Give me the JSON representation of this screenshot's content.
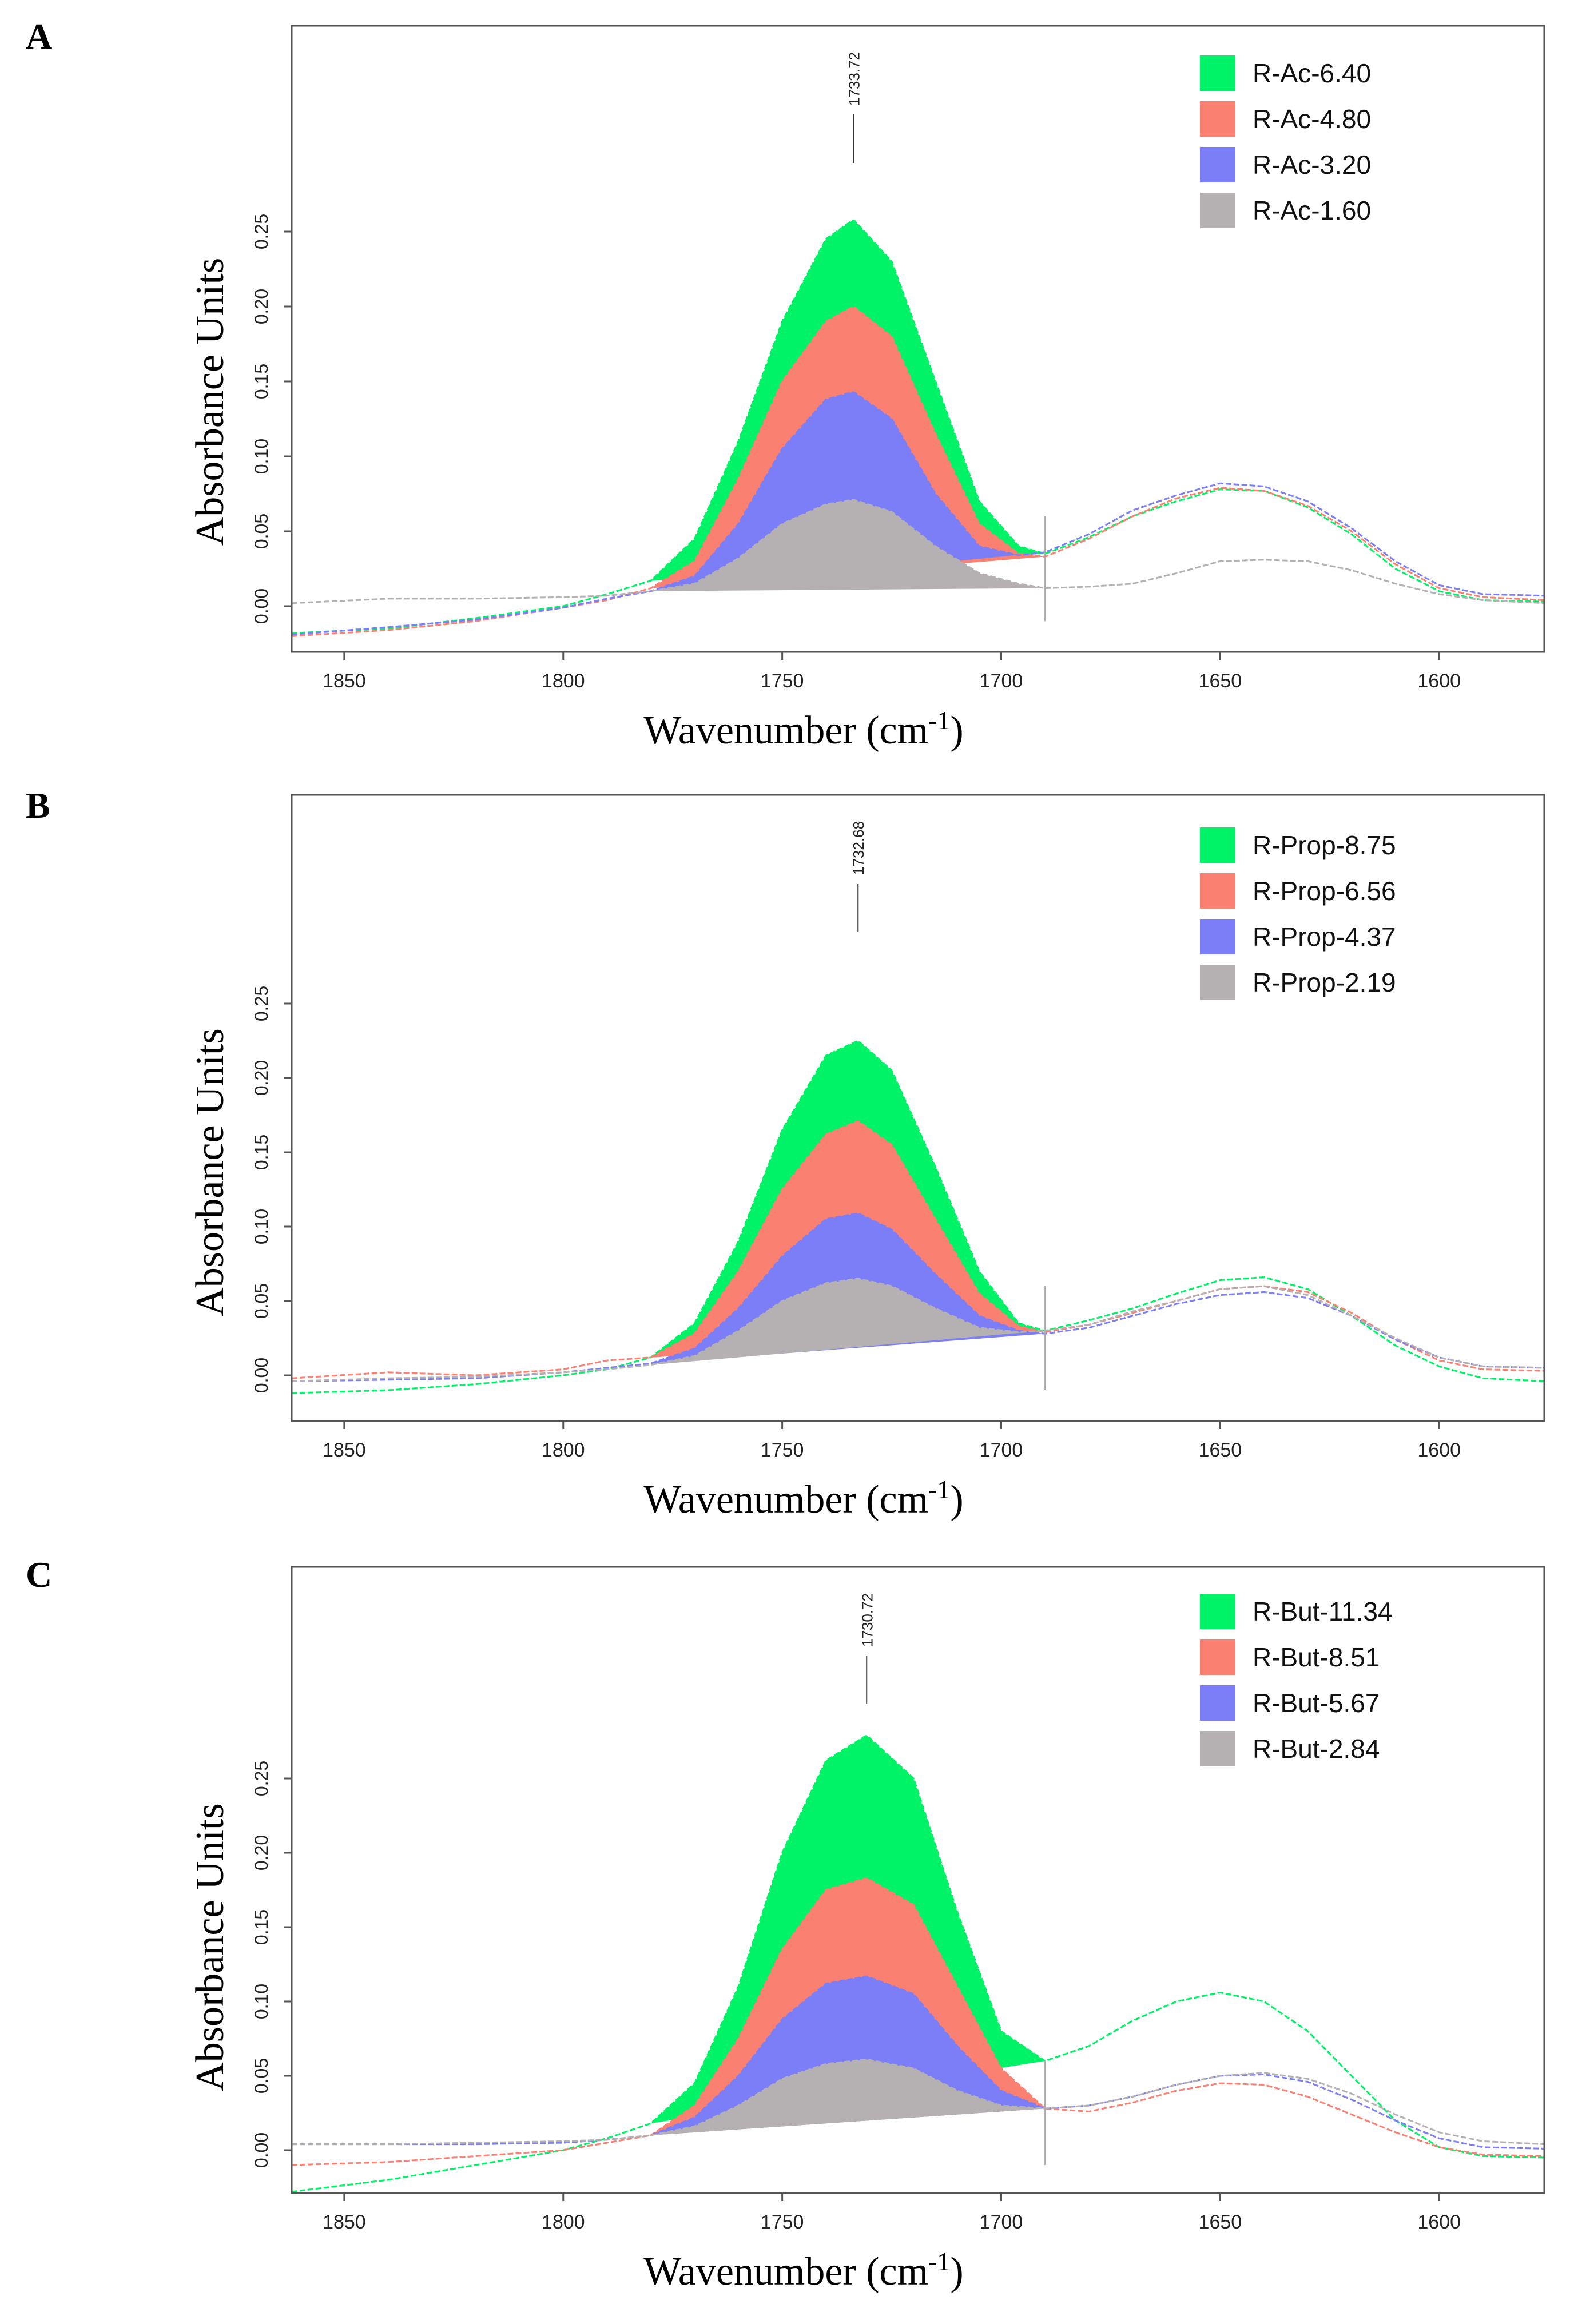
{
  "figure": {
    "panels": [
      "A",
      "B",
      "C"
    ]
  },
  "chart_data": [
    {
      "panel": "A",
      "type": "area",
      "xlabel": "Wavenumber (cm-1)",
      "ylabel": "Absorbance Units",
      "xlim": [
        1862,
        1576
      ],
      "ylim": [
        -0.03,
        0.38
      ],
      "x_ticks": [
        1850,
        1800,
        1750,
        1700,
        1650,
        1600
      ],
      "y_ticks": [
        0.0,
        0.05,
        0.1,
        0.15,
        0.2,
        0.25
      ],
      "peak_marker": {
        "x": 1733.72,
        "label": "1733.72"
      },
      "integration_limits": [
        1780,
        1690
      ],
      "legend": "top-right",
      "series": [
        {
          "name": "R-Ac-6.40",
          "color": "#00f266",
          "x": [
            1862,
            1840,
            1820,
            1800,
            1790,
            1780,
            1770,
            1760,
            1750,
            1740,
            1733.72,
            1725,
            1715,
            1705,
            1696,
            1690,
            1680,
            1670,
            1660,
            1650,
            1640,
            1630,
            1620,
            1610,
            1600,
            1590,
            1576
          ],
          "y": [
            -0.018,
            -0.015,
            -0.008,
            0.0,
            0.008,
            0.017,
            0.045,
            0.11,
            0.19,
            0.245,
            0.258,
            0.23,
            0.15,
            0.07,
            0.04,
            0.035,
            0.046,
            0.06,
            0.07,
            0.078,
            0.077,
            0.066,
            0.048,
            0.025,
            0.01,
            0.004,
            0.003
          ]
        },
        {
          "name": "R-Ac-4.80",
          "color": "#fa8072",
          "x": [
            1862,
            1840,
            1820,
            1800,
            1790,
            1780,
            1770,
            1760,
            1750,
            1740,
            1733.72,
            1725,
            1715,
            1705,
            1696,
            1690,
            1680,
            1670,
            1660,
            1650,
            1640,
            1630,
            1620,
            1610,
            1600,
            1590,
            1576
          ],
          "y": [
            -0.02,
            -0.016,
            -0.01,
            -0.001,
            0.004,
            0.012,
            0.03,
            0.085,
            0.15,
            0.19,
            0.2,
            0.18,
            0.115,
            0.055,
            0.035,
            0.033,
            0.045,
            0.06,
            0.072,
            0.079,
            0.077,
            0.067,
            0.05,
            0.028,
            0.012,
            0.006,
            0.004
          ]
        },
        {
          "name": "R-Ac-3.20",
          "color": "#7b7ef7",
          "x": [
            1862,
            1840,
            1820,
            1800,
            1790,
            1780,
            1770,
            1760,
            1750,
            1740,
            1733.72,
            1725,
            1715,
            1705,
            1696,
            1690,
            1680,
            1670,
            1660,
            1650,
            1640,
            1630,
            1620,
            1610,
            1600,
            1590,
            1576
          ],
          "y": [
            -0.019,
            -0.014,
            -0.009,
            -0.001,
            0.005,
            0.01,
            0.02,
            0.055,
            0.105,
            0.138,
            0.143,
            0.125,
            0.075,
            0.04,
            0.034,
            0.036,
            0.048,
            0.064,
            0.074,
            0.082,
            0.08,
            0.07,
            0.052,
            0.03,
            0.014,
            0.008,
            0.007
          ]
        },
        {
          "name": "R-Ac-1.60",
          "color": "#b5b0b2",
          "x": [
            1862,
            1840,
            1820,
            1800,
            1790,
            1780,
            1770,
            1760,
            1750,
            1740,
            1733.72,
            1725,
            1715,
            1705,
            1696,
            1690,
            1680,
            1670,
            1660,
            1650,
            1640,
            1630,
            1620,
            1610,
            1600,
            1590,
            1576
          ],
          "y": [
            0.002,
            0.005,
            0.005,
            0.006,
            0.007,
            0.01,
            0.015,
            0.032,
            0.055,
            0.068,
            0.071,
            0.063,
            0.04,
            0.022,
            0.015,
            0.012,
            0.013,
            0.015,
            0.022,
            0.03,
            0.031,
            0.03,
            0.024,
            0.015,
            0.008,
            0.004,
            0.002
          ]
        }
      ]
    },
    {
      "panel": "B",
      "type": "area",
      "xlabel": "Wavenumber (cm-1)",
      "ylabel": "Absorbance Units",
      "xlim": [
        1862,
        1576
      ],
      "ylim": [
        -0.03,
        0.36
      ],
      "x_ticks": [
        1850,
        1800,
        1750,
        1700,
        1650,
        1600
      ],
      "y_ticks": [
        0.0,
        0.05,
        0.1,
        0.15,
        0.2,
        0.25
      ],
      "peak_marker": {
        "x": 1732.68,
        "label": "1732.68"
      },
      "integration_limits": [
        1780,
        1690
      ],
      "legend": "top-right",
      "series": [
        {
          "name": "R-Prop-8.75",
          "color": "#00f266",
          "x": [
            1862,
            1840,
            1820,
            1800,
            1790,
            1780,
            1770,
            1760,
            1750,
            1740,
            1732.68,
            1725,
            1715,
            1705,
            1696,
            1690,
            1680,
            1670,
            1660,
            1650,
            1640,
            1630,
            1620,
            1610,
            1600,
            1590,
            1576
          ],
          "y": [
            -0.012,
            -0.01,
            -0.006,
            0.0,
            0.004,
            0.012,
            0.035,
            0.09,
            0.165,
            0.215,
            0.225,
            0.205,
            0.14,
            0.07,
            0.035,
            0.03,
            0.037,
            0.045,
            0.055,
            0.064,
            0.066,
            0.058,
            0.04,
            0.02,
            0.006,
            -0.002,
            -0.004
          ]
        },
        {
          "name": "R-Prop-6.56",
          "color": "#fa8072",
          "x": [
            1862,
            1840,
            1820,
            1800,
            1790,
            1780,
            1770,
            1760,
            1750,
            1740,
            1732.68,
            1725,
            1715,
            1705,
            1696,
            1690,
            1680,
            1670,
            1660,
            1650,
            1640,
            1630,
            1620,
            1610,
            1600,
            1590,
            1576
          ],
          "y": [
            -0.002,
            0.002,
            0.0,
            0.004,
            0.01,
            0.012,
            0.028,
            0.07,
            0.125,
            0.162,
            0.171,
            0.155,
            0.105,
            0.055,
            0.033,
            0.029,
            0.034,
            0.042,
            0.05,
            0.058,
            0.06,
            0.056,
            0.042,
            0.024,
            0.01,
            0.004,
            0.003
          ]
        },
        {
          "name": "R-Prop-4.37",
          "color": "#7b7ef7",
          "x": [
            1862,
            1840,
            1820,
            1800,
            1790,
            1780,
            1770,
            1760,
            1750,
            1740,
            1732.68,
            1725,
            1715,
            1705,
            1696,
            1690,
            1680,
            1670,
            1660,
            1650,
            1640,
            1630,
            1620,
            1610,
            1600,
            1590,
            1576
          ],
          "y": [
            -0.004,
            -0.003,
            -0.002,
            0.002,
            0.005,
            0.008,
            0.018,
            0.045,
            0.08,
            0.105,
            0.109,
            0.098,
            0.068,
            0.04,
            0.03,
            0.028,
            0.032,
            0.04,
            0.048,
            0.054,
            0.056,
            0.052,
            0.04,
            0.024,
            0.012,
            0.006,
            0.005
          ]
        },
        {
          "name": "R-Prop-2.19",
          "color": "#b5b0b2",
          "x": [
            1862,
            1840,
            1820,
            1800,
            1790,
            1780,
            1770,
            1760,
            1750,
            1740,
            1732.68,
            1725,
            1715,
            1705,
            1696,
            1690,
            1680,
            1670,
            1660,
            1650,
            1640,
            1630,
            1620,
            1610,
            1600,
            1590,
            1576
          ],
          "y": [
            -0.004,
            -0.002,
            -0.001,
            0.002,
            0.004,
            0.007,
            0.013,
            0.03,
            0.05,
            0.062,
            0.065,
            0.06,
            0.045,
            0.032,
            0.029,
            0.03,
            0.034,
            0.043,
            0.05,
            0.058,
            0.06,
            0.054,
            0.04,
            0.025,
            0.012,
            0.006,
            0.005
          ]
        }
      ]
    },
    {
      "panel": "C",
      "type": "area",
      "xlabel": "Wavenumber (cm-1)",
      "ylabel": "Absorbance Units",
      "xlim": [
        1862,
        1576
      ],
      "ylim": [
        -0.03,
        0.36
      ],
      "x_ticks": [
        1850,
        1800,
        1750,
        1700,
        1650,
        1600
      ],
      "y_ticks": [
        0.0,
        0.05,
        0.1,
        0.15,
        0.2,
        0.25
      ],
      "peak_marker": {
        "x": 1730.72,
        "label": "1730.72"
      },
      "integration_limits": [
        1780,
        1690
      ],
      "legend": "top-right",
      "series": [
        {
          "name": "R-But-11.34",
          "color": "#00f266",
          "x": [
            1862,
            1840,
            1820,
            1800,
            1790,
            1780,
            1770,
            1760,
            1750,
            1740,
            1730.72,
            1720,
            1710,
            1700,
            1690,
            1680,
            1670,
            1660,
            1650,
            1640,
            1630,
            1620,
            1610,
            1600,
            1590,
            1576
          ],
          "y": [
            -0.028,
            -0.02,
            -0.01,
            0.0,
            0.008,
            0.018,
            0.045,
            0.11,
            0.2,
            0.262,
            0.279,
            0.25,
            0.16,
            0.08,
            0.06,
            0.07,
            0.087,
            0.1,
            0.106,
            0.1,
            0.08,
            0.05,
            0.02,
            0.002,
            -0.004,
            -0.005
          ]
        },
        {
          "name": "R-But-8.51",
          "color": "#fa8072",
          "x": [
            1862,
            1840,
            1820,
            1800,
            1790,
            1780,
            1770,
            1760,
            1750,
            1740,
            1730.72,
            1720,
            1710,
            1700,
            1690,
            1680,
            1670,
            1660,
            1650,
            1640,
            1630,
            1620,
            1610,
            1600,
            1590,
            1576
          ],
          "y": [
            -0.01,
            -0.008,
            -0.004,
            0.0,
            0.005,
            0.01,
            0.03,
            0.075,
            0.135,
            0.175,
            0.183,
            0.165,
            0.11,
            0.055,
            0.028,
            0.026,
            0.032,
            0.04,
            0.045,
            0.044,
            0.036,
            0.024,
            0.012,
            0.002,
            -0.003,
            -0.004
          ]
        },
        {
          "name": "R-But-5.67",
          "color": "#7b7ef7",
          "x": [
            1862,
            1840,
            1820,
            1800,
            1790,
            1780,
            1770,
            1760,
            1750,
            1740,
            1730.72,
            1720,
            1710,
            1700,
            1690,
            1680,
            1670,
            1660,
            1650,
            1640,
            1630,
            1620,
            1610,
            1600,
            1590,
            1576
          ],
          "y": [
            0.004,
            0.004,
            0.004,
            0.005,
            0.007,
            0.01,
            0.022,
            0.05,
            0.088,
            0.112,
            0.117,
            0.105,
            0.07,
            0.04,
            0.028,
            0.03,
            0.036,
            0.044,
            0.05,
            0.051,
            0.046,
            0.034,
            0.02,
            0.008,
            0.002,
            0.001
          ]
        },
        {
          "name": "R-But-2.84",
          "color": "#b5b0b2",
          "x": [
            1862,
            1840,
            1820,
            1800,
            1790,
            1780,
            1770,
            1760,
            1750,
            1740,
            1730.72,
            1720,
            1710,
            1700,
            1690,
            1680,
            1670,
            1660,
            1650,
            1640,
            1630,
            1620,
            1610,
            1600,
            1590,
            1576
          ],
          "y": [
            0.004,
            0.004,
            0.005,
            0.006,
            0.007,
            0.01,
            0.016,
            0.03,
            0.048,
            0.058,
            0.061,
            0.055,
            0.04,
            0.03,
            0.028,
            0.03,
            0.036,
            0.044,
            0.05,
            0.052,
            0.048,
            0.038,
            0.024,
            0.012,
            0.006,
            0.004
          ]
        }
      ]
    }
  ]
}
